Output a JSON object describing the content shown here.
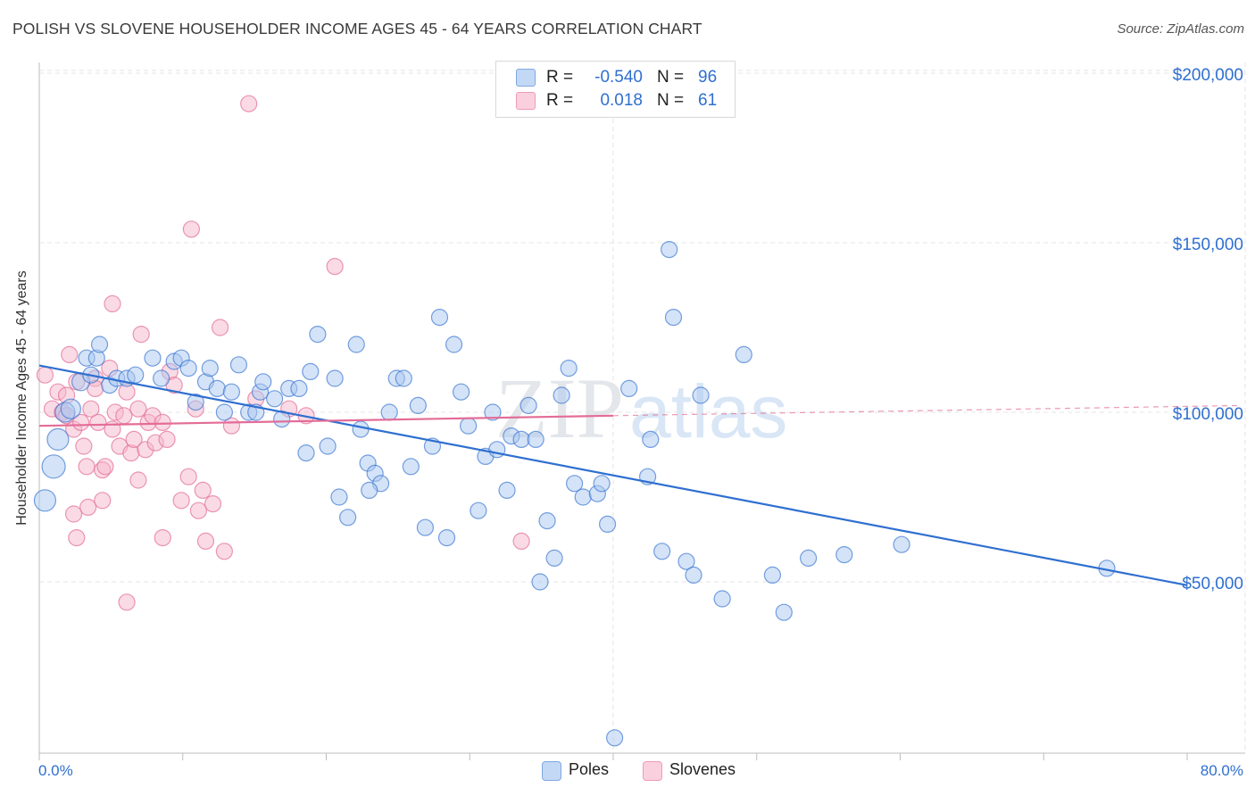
{
  "header": {
    "title": "POLISH VS SLOVENE HOUSEHOLDER INCOME AGES 45 - 64 YEARS CORRELATION CHART",
    "source": "Source: ZipAtlas.com"
  },
  "legend": {
    "rows": [
      {
        "r_label": "R =",
        "r_value": "-0.540",
        "n_label": "N =",
        "n_value": "96",
        "color": "#a9c8f0"
      },
      {
        "r_label": "R =",
        "r_value": "0.018",
        "n_label": "N =",
        "n_value": "61",
        "color": "#f6b8cc"
      }
    ],
    "bottom": [
      {
        "label": "Poles",
        "color": "#a9c8f0"
      },
      {
        "label": "Slovenes",
        "color": "#f6b8cc"
      }
    ]
  },
  "watermark": {
    "zip": "ZIP",
    "atlas": "atlas"
  },
  "chart_data": {
    "type": "scatter",
    "title": "POLISH VS SLOVENE HOUSEHOLDER INCOME AGES 45 - 64 YEARS CORRELATION CHART",
    "xlabel": "",
    "ylabel": "Householder Income Ages 45 - 64 years",
    "xlim": [
      0,
      80
    ],
    "ylim": [
      0,
      210000
    ],
    "x_tick_labels": [
      "0.0%",
      "80.0%"
    ],
    "y_tick_labels": [
      "$50,000",
      "$100,000",
      "$150,000",
      "$200,000"
    ],
    "y_ticks": [
      50000,
      100000,
      150000,
      200000
    ],
    "grid": true,
    "legend_position": "top-center",
    "colors": {
      "poles": "#2f6fd0",
      "poles_fill": "#a9c8f0",
      "slovenes": "#e36c97",
      "slovenes_fill": "#f6b8cc"
    },
    "series": [
      {
        "name": "Poles",
        "r": -0.54,
        "n": 96,
        "trend": {
          "x": [
            0.0,
            80.0
          ],
          "y": [
            113800,
            49000
          ]
        },
        "points": [
          [
            0.4,
            74000,
            20
          ],
          [
            1.0,
            84000,
            22
          ],
          [
            1.3,
            92000,
            20
          ],
          [
            1.8,
            100000,
            18
          ],
          [
            2.2,
            101000,
            18
          ],
          [
            2.9,
            109000,
            16
          ],
          [
            3.3,
            116000,
            14
          ],
          [
            3.6,
            111000,
            14
          ],
          [
            4.0,
            116000,
            14
          ],
          [
            4.2,
            120000,
            14
          ],
          [
            4.9,
            108000,
            14
          ],
          [
            5.4,
            110000,
            14
          ],
          [
            6.1,
            110000,
            14
          ],
          [
            6.7,
            111000,
            14
          ],
          [
            7.9,
            116000,
            14
          ],
          [
            8.5,
            110000,
            14
          ],
          [
            9.4,
            115000,
            14
          ],
          [
            9.9,
            116000,
            14
          ],
          [
            10.4,
            113000,
            14
          ],
          [
            10.9,
            103000,
            14
          ],
          [
            11.6,
            109000,
            14
          ],
          [
            11.9,
            113000,
            14
          ],
          [
            12.4,
            107000,
            14
          ],
          [
            12.9,
            100000,
            14
          ],
          [
            13.4,
            106000,
            14
          ],
          [
            13.9,
            114000,
            14
          ],
          [
            14.6,
            100000,
            14
          ],
          [
            15.1,
            100000,
            14
          ],
          [
            15.4,
            106000,
            14
          ],
          [
            15.6,
            109000,
            14
          ],
          [
            16.4,
            104000,
            14
          ],
          [
            16.9,
            98000,
            14
          ],
          [
            17.4,
            107000,
            14
          ],
          [
            18.1,
            107000,
            14
          ],
          [
            18.6,
            88000,
            14
          ],
          [
            18.9,
            112000,
            14
          ],
          [
            19.4,
            123000,
            14
          ],
          [
            20.1,
            90000,
            14
          ],
          [
            20.6,
            110000,
            14
          ],
          [
            20.9,
            75000,
            14
          ],
          [
            21.5,
            69000,
            14
          ],
          [
            22.1,
            120000,
            14
          ],
          [
            22.4,
            95000,
            14
          ],
          [
            22.9,
            85000,
            14
          ],
          [
            23.4,
            82000,
            14
          ],
          [
            23.8,
            79000,
            14
          ],
          [
            24.4,
            100000,
            14
          ],
          [
            24.9,
            110000,
            14
          ],
          [
            25.4,
            110000,
            14
          ],
          [
            25.9,
            84000,
            14
          ],
          [
            26.4,
            102000,
            14
          ],
          [
            26.9,
            66000,
            14
          ],
          [
            27.4,
            90000,
            14
          ],
          [
            27.9,
            128000,
            14
          ],
          [
            28.4,
            63000,
            14
          ],
          [
            28.9,
            120000,
            14
          ],
          [
            29.4,
            106000,
            14
          ],
          [
            29.9,
            96000,
            14
          ],
          [
            30.6,
            71000,
            14
          ],
          [
            31.1,
            87000,
            14
          ],
          [
            31.6,
            100000,
            14
          ],
          [
            31.9,
            89000,
            14
          ],
          [
            32.6,
            77000,
            14
          ],
          [
            32.9,
            93000,
            14
          ],
          [
            33.6,
            92000,
            14
          ],
          [
            34.1,
            102000,
            14
          ],
          [
            34.6,
            92000,
            14
          ],
          [
            35.4,
            68000,
            14
          ],
          [
            35.9,
            57000,
            14
          ],
          [
            36.4,
            105000,
            14
          ],
          [
            36.9,
            113000,
            14
          ],
          [
            37.3,
            79000,
            14
          ],
          [
            37.9,
            75000,
            14
          ],
          [
            38.9,
            76000,
            14
          ],
          [
            39.6,
            67000,
            14
          ],
          [
            40.1,
            4000,
            14
          ],
          [
            41.1,
            107000,
            14
          ],
          [
            42.4,
            81000,
            14
          ],
          [
            42.6,
            92000,
            14
          ],
          [
            43.4,
            59000,
            14
          ],
          [
            43.9,
            148000,
            14
          ],
          [
            44.2,
            128000,
            14
          ],
          [
            45.1,
            56000,
            14
          ],
          [
            45.6,
            52000,
            14
          ],
          [
            46.1,
            105000,
            14
          ],
          [
            47.6,
            45000,
            14
          ],
          [
            49.1,
            117000,
            14
          ],
          [
            51.1,
            52000,
            14
          ],
          [
            51.9,
            41000,
            14
          ],
          [
            53.6,
            57000,
            14
          ],
          [
            56.1,
            58000,
            14
          ],
          [
            60.1,
            61000,
            14
          ],
          [
            34.9,
            50000,
            14
          ],
          [
            39.2,
            79000,
            14
          ],
          [
            74.4,
            54000,
            14
          ],
          [
            23.0,
            77000,
            14
          ]
        ]
      },
      {
        "name": "Slovenes",
        "r": 0.018,
        "n": 61,
        "trend": {
          "x": [
            0.0,
            40.0
          ],
          "y": [
            96000,
            99000
          ]
        },
        "trend_dashed": {
          "x": [
            40.0,
            80.0
          ],
          "y": [
            99000,
            102000
          ]
        },
        "points": [
          [
            0.4,
            111000,
            14
          ],
          [
            0.9,
            101000,
            14
          ],
          [
            1.3,
            106000,
            14
          ],
          [
            1.6,
            100000,
            14
          ],
          [
            1.9,
            105000,
            14
          ],
          [
            2.1,
            117000,
            14
          ],
          [
            2.4,
            95000,
            14
          ],
          [
            2.6,
            109000,
            14
          ],
          [
            2.6,
            63000,
            14
          ],
          [
            2.9,
            97000,
            14
          ],
          [
            3.1,
            90000,
            14
          ],
          [
            3.3,
            84000,
            14
          ],
          [
            3.4,
            72000,
            14
          ],
          [
            3.6,
            101000,
            14
          ],
          [
            3.9,
            110000,
            14
          ],
          [
            4.1,
            97000,
            14
          ],
          [
            4.4,
            83000,
            14
          ],
          [
            4.6,
            84000,
            14
          ],
          [
            4.9,
            113000,
            14
          ],
          [
            5.1,
            95000,
            14
          ],
          [
            5.1,
            132000,
            14
          ],
          [
            5.3,
            100000,
            14
          ],
          [
            5.6,
            90000,
            14
          ],
          [
            5.9,
            99000,
            14
          ],
          [
            6.1,
            106000,
            14
          ],
          [
            6.4,
            88000,
            14
          ],
          [
            6.6,
            92000,
            14
          ],
          [
            6.9,
            80000,
            14
          ],
          [
            7.1,
            123000,
            14
          ],
          [
            7.4,
            89000,
            14
          ],
          [
            7.6,
            97000,
            14
          ],
          [
            7.9,
            99000,
            14
          ],
          [
            8.1,
            91000,
            14
          ],
          [
            8.6,
            97000,
            14
          ],
          [
            8.9,
            92000,
            14
          ],
          [
            9.1,
            112000,
            14
          ],
          [
            9.4,
            108000,
            14
          ],
          [
            9.9,
            74000,
            14
          ],
          [
            10.4,
            81000,
            14
          ],
          [
            10.6,
            154000,
            14
          ],
          [
            10.9,
            101000,
            14
          ],
          [
            11.4,
            77000,
            14
          ],
          [
            11.6,
            62000,
            14
          ],
          [
            12.1,
            73000,
            14
          ],
          [
            12.6,
            125000,
            14
          ],
          [
            12.9,
            59000,
            14
          ],
          [
            13.4,
            96000,
            14
          ],
          [
            14.6,
            191000,
            14
          ],
          [
            15.1,
            104000,
            14
          ],
          [
            17.4,
            101000,
            14
          ],
          [
            18.6,
            99000,
            14
          ],
          [
            20.6,
            143000,
            14
          ],
          [
            33.6,
            62000,
            14
          ],
          [
            6.1,
            44000,
            14
          ],
          [
            4.4,
            74000,
            14
          ],
          [
            2.4,
            70000,
            14
          ],
          [
            8.6,
            63000,
            14
          ],
          [
            3.9,
            107000,
            14
          ],
          [
            1.9,
            99000,
            14
          ],
          [
            6.9,
            101000,
            14
          ],
          [
            11.1,
            71000,
            14
          ]
        ]
      }
    ]
  }
}
